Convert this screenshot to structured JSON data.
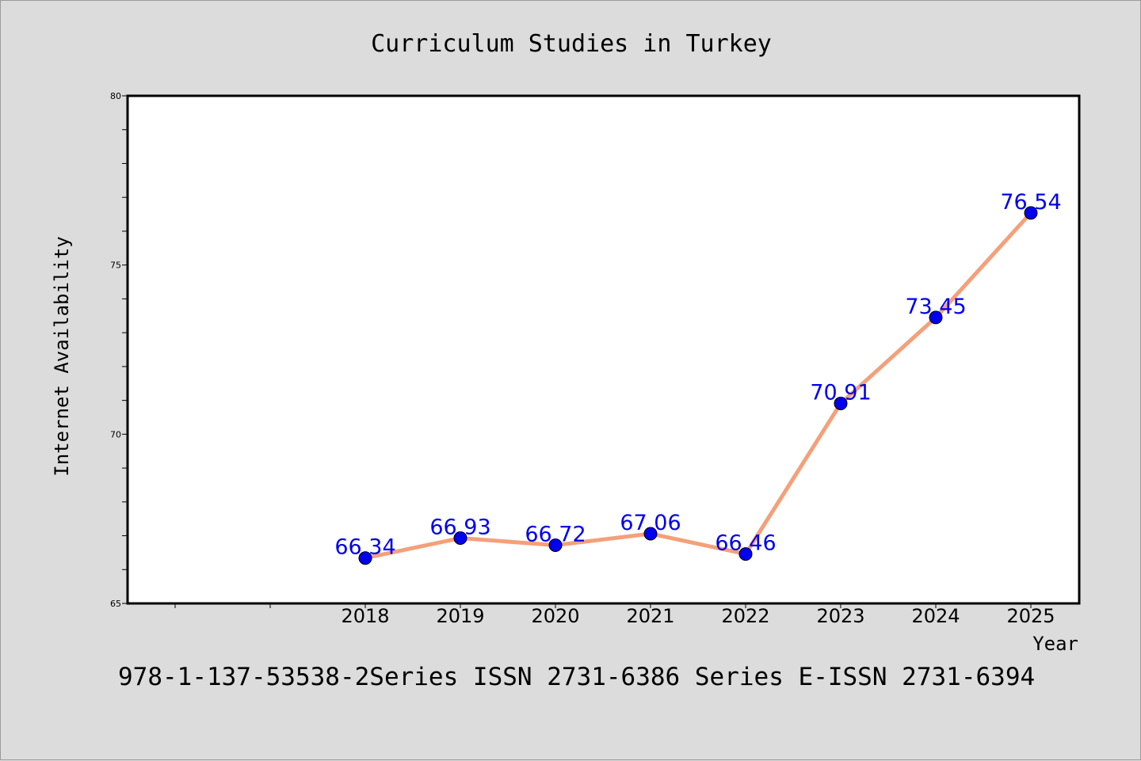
{
  "chart_data": {
    "type": "line",
    "title": "Curriculum Studies in Turkey",
    "xlabel": "Year",
    "ylabel": "Internet Availability",
    "x": [
      "2018",
      "2019",
      "2020",
      "2021",
      "2022",
      "2023",
      "2024",
      "2025"
    ],
    "series": [
      {
        "values": [
          66.34,
          66.93,
          66.72,
          67.06,
          66.46,
          70.91,
          73.45,
          76.54
        ],
        "line_color": "#f4a07a",
        "marker_color": "#0000ee"
      }
    ],
    "data_labels": [
      "66.34",
      "66.93",
      "66.72",
      "67.06",
      "66.46",
      "70.91",
      "73.45",
      "76.54"
    ],
    "ylim": [
      65,
      80
    ],
    "yticks": [
      "65",
      "70",
      "75",
      "80"
    ],
    "grid": false,
    "legend": "none"
  },
  "footer_text": "978-1-137-53538-2Series ISSN 2731-6386 Series E-ISSN 2731-6394",
  "colors": {
    "background": "#dcdcdc",
    "plot_background": "#ffffff",
    "axis": "#000000",
    "data_label": "#0000ee"
  }
}
